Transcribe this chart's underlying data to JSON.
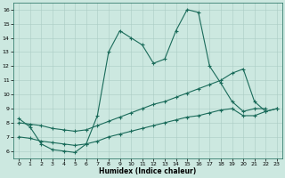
{
  "xlabel": "Humidex (Indice chaleur)",
  "xlim": [
    -0.5,
    23.5
  ],
  "ylim": [
    5.5,
    16.5
  ],
  "yticks": [
    6,
    7,
    8,
    9,
    10,
    11,
    12,
    13,
    14,
    15,
    16
  ],
  "xticks": [
    0,
    1,
    2,
    3,
    4,
    5,
    6,
    7,
    8,
    9,
    10,
    11,
    12,
    13,
    14,
    15,
    16,
    17,
    18,
    19,
    20,
    21,
    22,
    23
  ],
  "background_color": "#cce8e0",
  "line_color": "#1a6b5a",
  "grid_color": "#aaccc4",
  "lines": [
    {
      "x": [
        0,
        1,
        2,
        3,
        4,
        5,
        6,
        7,
        8,
        9,
        10,
        11,
        12,
        13,
        14,
        15,
        16,
        17,
        18,
        19,
        20,
        21,
        22,
        23
      ],
      "y": [
        8.3,
        7.7,
        6.5,
        6.1,
        6.0,
        5.9,
        6.5,
        8.5,
        13.0,
        14.5,
        14.0,
        13.5,
        12.2,
        12.5,
        14.5,
        16.0,
        15.8,
        12.0,
        10.8,
        9.5,
        8.8,
        9.0,
        9.0,
        null
      ]
    },
    {
      "x": [
        0,
        1,
        2,
        3,
        4,
        5,
        6,
        7,
        8,
        9,
        10,
        11,
        12,
        13,
        14,
        15,
        16,
        17,
        18,
        19,
        20,
        21,
        22,
        23
      ],
      "y": [
        8.0,
        7.9,
        7.8,
        7.6,
        7.5,
        7.4,
        7.5,
        7.8,
        8.1,
        8.4,
        8.7,
        9.0,
        9.3,
        9.5,
        9.8,
        10.1,
        10.4,
        10.7,
        11.0,
        11.5,
        11.8,
        9.5,
        8.8,
        9.0
      ]
    },
    {
      "x": [
        0,
        1,
        2,
        3,
        4,
        5,
        6,
        7,
        8,
        9,
        10,
        11,
        12,
        13,
        14,
        15,
        16,
        17,
        18,
        19,
        20,
        21,
        22,
        23
      ],
      "y": [
        7.0,
        6.9,
        6.7,
        6.6,
        6.5,
        6.4,
        6.5,
        6.7,
        7.0,
        7.2,
        7.4,
        7.6,
        7.8,
        8.0,
        8.2,
        8.4,
        8.5,
        8.7,
        8.9,
        9.0,
        8.5,
        8.5,
        8.8,
        9.0
      ]
    }
  ]
}
